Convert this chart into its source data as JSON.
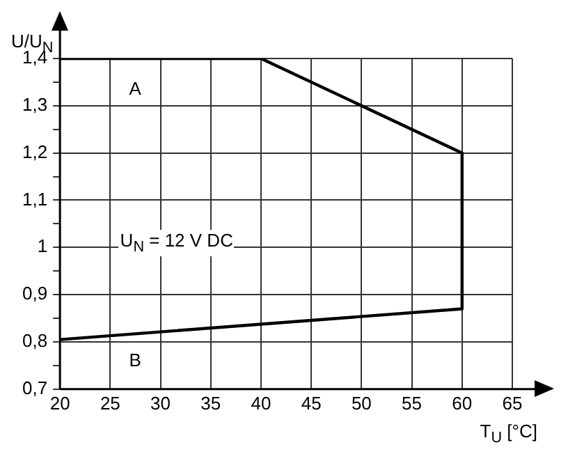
{
  "chart_data": {
    "type": "line",
    "xlabel": "T$_{U}$ [°C]",
    "ylabel": "U/U$_{N}$",
    "series": [
      {
        "color": "#000000",
        "x": [
          20,
          40,
          60,
          60,
          20
        ],
        "values": [
          1.4,
          1.4,
          1.2,
          0.87,
          0.805
        ]
      }
    ],
    "xlim": [
      20,
      65
    ],
    "xticks": [
      20,
      25,
      30,
      35,
      40,
      45,
      50,
      55,
      60,
      65
    ],
    "ylim": [
      0.7,
      1.4
    ],
    "yticks": [
      {
        "value": 0.7,
        "label": "0,7"
      },
      {
        "value": 0.75,
        "label": null
      },
      {
        "value": 0.8,
        "label": "0,8"
      },
      {
        "value": 0.85,
        "label": null
      },
      {
        "value": 0.9,
        "label": "0,9"
      },
      {
        "value": 0.95,
        "label": null
      },
      {
        "value": 1,
        "label": "1"
      },
      {
        "value": 1.05,
        "label": null
      },
      {
        "value": 1.1,
        "label": "1,1"
      },
      {
        "value": 1.15,
        "label": null
      },
      {
        "value": 1.2,
        "label": "1,2"
      },
      {
        "value": 1.25,
        "label": null
      },
      {
        "value": 1.3,
        "label": "1,3"
      },
      {
        "value": 1.35,
        "label": null
      },
      {
        "value": 1.4,
        "label": "1,4"
      }
    ],
    "grid": true,
    "legend": false,
    "marker": "none",
    "line_style": "solid",
    "annotations": [
      "A",
      "B",
      "U$_{N}$ = 12 V DC"
    ]
  }
}
